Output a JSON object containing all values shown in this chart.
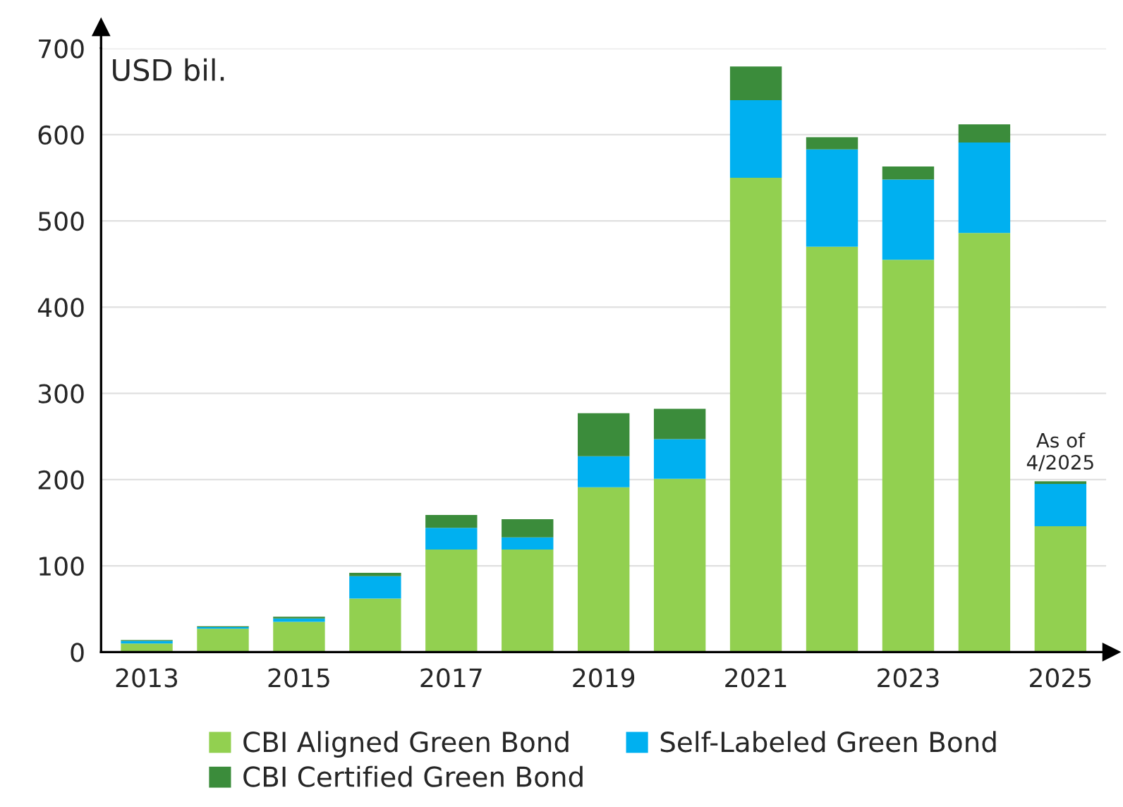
{
  "chart_data": {
    "type": "bar",
    "stacked": true,
    "ylabel": "USD bil.",
    "categories": [
      "2013",
      null,
      "2015",
      null,
      "2017",
      null,
      "2019",
      null,
      "2021",
      null,
      "2023",
      null,
      "2025"
    ],
    "series": [
      {
        "name": "CBI Aligned Green Bond",
        "color": "#92d050",
        "values": [
          10,
          27,
          35,
          62,
          119,
          119,
          191,
          201,
          550,
          470,
          455,
          486,
          146
        ]
      },
      {
        "name": "Self-Labeled Green Bond",
        "color": "#00b0f0",
        "values": [
          3,
          2,
          4,
          26,
          25,
          14,
          36,
          46,
          90,
          113,
          93,
          105,
          49
        ]
      },
      {
        "name": "CBI Certified Green Bond",
        "color": "#3b8c3b",
        "values": [
          1,
          1,
          2,
          4,
          15,
          21,
          50,
          35,
          39,
          14,
          15,
          21,
          3
        ]
      }
    ],
    "ylim": [
      0,
      700
    ],
    "yticks": [
      0,
      100,
      200,
      300,
      400,
      500,
      600,
      700
    ],
    "grid": "y",
    "legend": "bottom",
    "annotations": [
      {
        "text": "As of\n4/2025",
        "x": "2025",
        "y": 198
      }
    ]
  }
}
